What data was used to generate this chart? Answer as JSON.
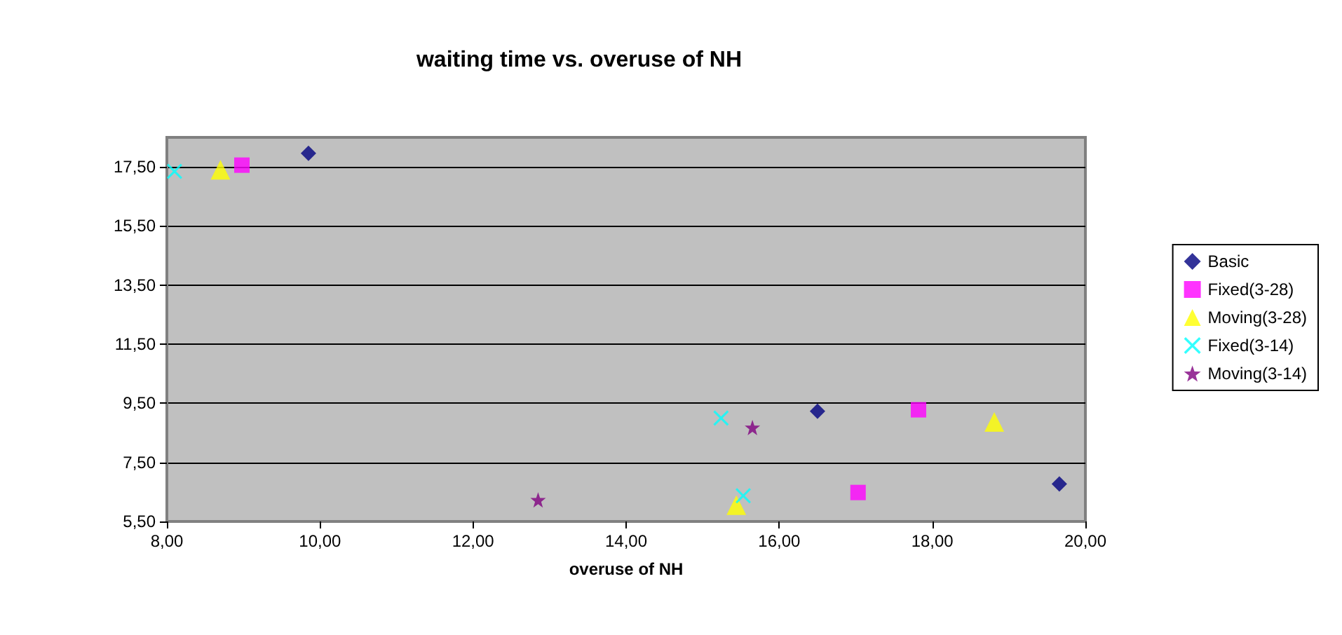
{
  "chart_data": {
    "type": "scatter",
    "title": "waiting time vs. overuse of NH",
    "xlabel": "overuse of NH",
    "xlim": [
      8,
      20
    ],
    "xticks": [
      {
        "value": 8,
        "label": "8,00"
      },
      {
        "value": 10,
        "label": "10,00"
      },
      {
        "value": 12,
        "label": "12,00"
      },
      {
        "value": 14,
        "label": "14,00"
      },
      {
        "value": 16,
        "label": "16,00"
      },
      {
        "value": 18,
        "label": "18,00"
      },
      {
        "value": 20,
        "label": "20,00"
      }
    ],
    "ylim": [
      5.5,
      18.5
    ],
    "yticks": [
      {
        "value": 5.5,
        "label": "5,50"
      },
      {
        "value": 7.5,
        "label": "7,50"
      },
      {
        "value": 9.5,
        "label": "9,50"
      },
      {
        "value": 11.5,
        "label": "11,50"
      },
      {
        "value": 13.5,
        "label": "13,50"
      },
      {
        "value": 15.5,
        "label": "15,50"
      },
      {
        "value": 17.5,
        "label": "17,50"
      }
    ],
    "grid": "y",
    "legend": "right",
    "series": [
      {
        "name": "Basic",
        "color": "#000080",
        "marker": "diamond",
        "x": [
          9.85,
          16.5,
          19.66
        ],
        "values": [
          17.96,
          9.23,
          6.77
        ]
      },
      {
        "name": "Fixed(3-28)",
        "color": "#ff00ff",
        "marker": "square",
        "x": [
          8.98,
          17.82,
          17.03
        ],
        "values": [
          17.56,
          9.28,
          6.48
        ]
      },
      {
        "name": "Moving(3-28)",
        "color": "#ffff00",
        "marker": "triangle",
        "x": [
          8.7,
          18.81,
          15.44
        ],
        "values": [
          17.4,
          8.87,
          6.05
        ]
      },
      {
        "name": "Fixed(3-14)",
        "color": "#00ffff",
        "marker": "cross",
        "x": [
          8.1,
          15.24,
          15.53
        ],
        "values": [
          17.35,
          9.0,
          6.37
        ]
      },
      {
        "name": "Moving(3-14)",
        "color": "#800080",
        "marker": "star",
        "x": [
          12.85,
          15.65
        ],
        "values": [
          6.23,
          8.68
        ]
      }
    ]
  }
}
